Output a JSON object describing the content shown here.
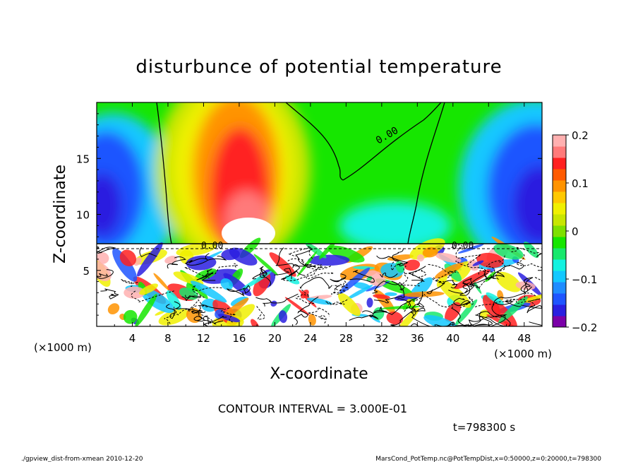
{
  "chart_data": {
    "type": "heatmap",
    "title": "disturbunce of potential temperature",
    "xlabel": "X-coordinate",
    "ylabel": "Z-coordinate",
    "x_unit_left": "(×1000 m)",
    "x_unit_right": "(×1000 m)",
    "x_ticks": [
      "4",
      "8",
      "12",
      "16",
      "20",
      "24",
      "28",
      "32",
      "36",
      "40",
      "44",
      "48"
    ],
    "x_tick_values": [
      4,
      8,
      12,
      16,
      20,
      24,
      28,
      32,
      36,
      40,
      44,
      48
    ],
    "y_ticks": [
      "5",
      "10",
      "15"
    ],
    "y_tick_values": [
      5,
      10,
      15
    ],
    "xlim": [
      0,
      50
    ],
    "ylim": [
      0,
      20
    ],
    "colorbar": {
      "ticks": [
        "0.2",
        "0.1",
        "0",
        "−0.1",
        "−0.2"
      ],
      "values": [
        0.2,
        0.1,
        0,
        -0.1,
        -0.2
      ],
      "range": [
        -0.2,
        0.2
      ],
      "colors": [
        "#7b00a8",
        "#2a1fe0",
        "#1f55ff",
        "#1f8cff",
        "#13c8ff",
        "#14f2e0",
        "#18e86c",
        "#16e600",
        "#7ee000",
        "#c8e600",
        "#f0f000",
        "#ffc800",
        "#ff9300",
        "#ff5a00",
        "#ff2020",
        "#ff7a7a",
        "#ffb0b0"
      ]
    },
    "contour_label": "0.00",
    "contour_interval_text": "CONTOUR INTERVAL = 3.000E-01",
    "time_text": "t=798300  s"
  },
  "footer": {
    "left": "./gpview_dist-from-xmean  2010-12-20",
    "right": "MarsCond_PotTemp.nc@PotTempDist,x=0:50000,z=0:20000,t=798300"
  }
}
